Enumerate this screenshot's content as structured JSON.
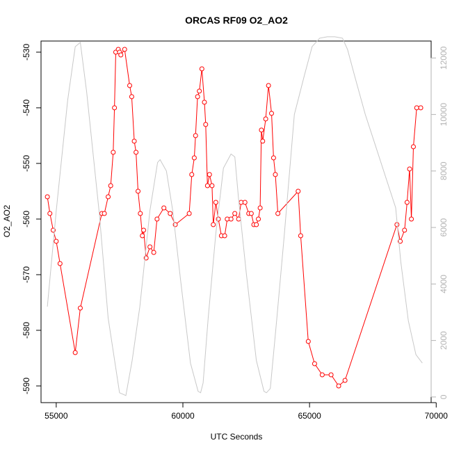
{
  "chart_data": {
    "type": "line",
    "title": "ORCAS RF09 O2_AO2",
    "xlabel": "UTC Seconds",
    "ylabel": "O2_AO2",
    "xlim": [
      54400,
      69800
    ],
    "ylim": [
      -593,
      -528
    ],
    "y2lim": [
      -200,
      12600
    ],
    "x_ticks": [
      55000,
      60000,
      65000,
      70000
    ],
    "y_ticks": [
      -530,
      -540,
      -550,
      -560,
      -570,
      -580,
      -590
    ],
    "y2_ticks": [
      0,
      2000,
      4000,
      6000,
      8000,
      10000,
      12000
    ],
    "colors": {
      "primary": "#ff0000",
      "secondary": "#c8c8c8"
    },
    "series": [
      {
        "axis": "left",
        "color": "#ff0000",
        "marker": "open-circle",
        "x": [
          54650,
          54750,
          54880,
          55000,
          55150,
          55750,
          55950,
          56800,
          56900,
          57050,
          57150,
          57250,
          57300,
          57350,
          57450,
          57500,
          57550,
          57700,
          57900,
          57980,
          58080,
          58150,
          58230,
          58320,
          58400,
          58450,
          58550,
          58700,
          58850,
          58980,
          59250,
          59500,
          59700,
          60250,
          60350,
          60450,
          60500,
          60580,
          60650,
          60750,
          60850,
          60900,
          60970,
          61050,
          61150,
          61200,
          61300,
          61400,
          61520,
          61650,
          61750,
          61900,
          62050,
          62200,
          62300,
          62450,
          62600,
          62700,
          62800,
          62900,
          62980,
          63050,
          63100,
          63150,
          63270,
          63380,
          63500,
          63580,
          63650,
          63750,
          64550,
          64650,
          64950,
          65200,
          65500,
          65850,
          66150,
          66400,
          68450,
          68580,
          68750,
          68850,
          68950,
          69020,
          69100,
          69230,
          69390
        ],
        "y": [
          -556,
          -559,
          -562,
          -564,
          -568,
          -584,
          -576,
          -559,
          -559,
          -556,
          -554,
          -548,
          -540,
          -530,
          -529.5,
          -530,
          -530.5,
          -529.5,
          -536,
          -538,
          -546,
          -548,
          -555,
          -559,
          -563,
          -562,
          -567,
          -565,
          -566,
          -560,
          -558,
          -559,
          -561,
          -559,
          -552,
          -549,
          -545,
          -538,
          -537,
          -533,
          -539,
          -543,
          -554,
          -552,
          -554,
          -561,
          -557,
          -560,
          -563,
          -563,
          -560,
          -560,
          -559,
          -560,
          -557,
          -557,
          -559,
          -559,
          -561,
          -561,
          -560,
          -558,
          -544,
          -546,
          -542,
          -536,
          -541,
          -549,
          -552,
          -559,
          -555,
          -563,
          -582,
          -586,
          -588,
          -588,
          -590,
          -589,
          -561,
          -564,
          -562,
          -557,
          -551,
          -560,
          -547,
          -540,
          -540
        ]
      },
      {
        "axis": "right",
        "color": "#c8c8c8",
        "marker": "none",
        "x": [
          54650,
          55000,
          55450,
          55750,
          55950,
          56200,
          56700,
          57050,
          57500,
          57750,
          58000,
          58300,
          58700,
          59000,
          59100,
          59350,
          59600,
          59900,
          60300,
          60600,
          60700,
          60800,
          61000,
          61300,
          61600,
          61900,
          62050,
          62200,
          62500,
          62900,
          63200,
          63300,
          63450,
          63700,
          64000,
          64400,
          64800,
          65100,
          65400,
          65700,
          66000,
          66300,
          66500,
          66800,
          67200,
          67600,
          68000,
          68400,
          68600,
          68900,
          69200,
          69450
        ],
        "y": [
          3200,
          6600,
          10500,
          12400,
          12550,
          10800,
          6500,
          2800,
          150,
          50,
          1300,
          3200,
          6600,
          8300,
          8400,
          8000,
          6600,
          4200,
          1200,
          200,
          150,
          500,
          2800,
          5800,
          8100,
          8600,
          8500,
          7000,
          4400,
          1300,
          200,
          150,
          300,
          2700,
          5700,
          10000,
          11400,
          12400,
          12700,
          12750,
          12750,
          12700,
          12300,
          11300,
          10000,
          8900,
          7800,
          6700,
          4800,
          2700,
          1500,
          1200
        ]
      }
    ]
  }
}
